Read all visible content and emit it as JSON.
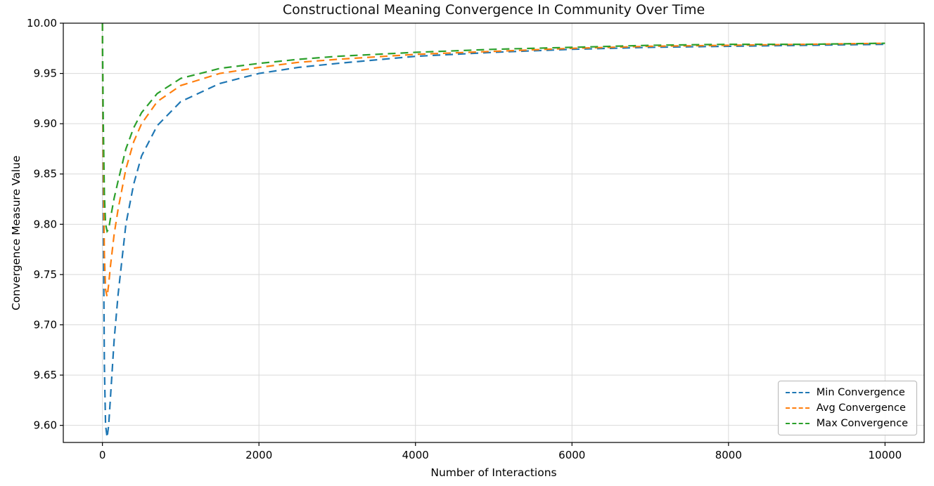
{
  "chart_data": {
    "type": "line",
    "title": "Constructional Meaning Convergence In Community Over Time",
    "xlabel": "Number of Interactions",
    "ylabel": "Convergence Measure Value",
    "xlim": [
      -500,
      10500
    ],
    "ylim": [
      9.583,
      10.0
    ],
    "xticks": [
      0,
      2000,
      4000,
      6000,
      8000,
      10000
    ],
    "yticks": [
      9.6,
      9.65,
      9.7,
      9.75,
      9.8,
      9.85,
      9.9,
      9.95,
      10.0
    ],
    "grid": true,
    "line_style": "dashed",
    "legend_position": "lower right",
    "x": [
      0,
      10,
      25,
      40,
      60,
      80,
      100,
      150,
      200,
      300,
      400,
      500,
      700,
      1000,
      1500,
      2000,
      2500,
      3000,
      4000,
      5000,
      6000,
      7000,
      8000,
      9000,
      10000
    ],
    "series": [
      {
        "name": "Min Convergence",
        "color": "#1f77b4",
        "values": [
          10.0,
          9.82,
          9.66,
          9.6,
          9.588,
          9.6,
          9.625,
          9.685,
          9.73,
          9.8,
          9.84,
          9.868,
          9.898,
          9.922,
          9.94,
          9.95,
          9.956,
          9.96,
          9.967,
          9.971,
          9.974,
          9.976,
          9.977,
          9.978,
          9.979
        ]
      },
      {
        "name": "Avg Convergence",
        "color": "#ff7f0e",
        "values": [
          10.0,
          9.87,
          9.77,
          9.735,
          9.728,
          9.74,
          9.757,
          9.79,
          9.815,
          9.855,
          9.882,
          9.9,
          9.922,
          9.938,
          9.95,
          9.956,
          9.961,
          9.964,
          9.969,
          9.972,
          9.975,
          9.977,
          9.978,
          9.979,
          9.98
        ]
      },
      {
        "name": "Max Convergence",
        "color": "#2ca02c",
        "values": [
          10.0,
          9.91,
          9.83,
          9.8,
          9.793,
          9.795,
          9.805,
          9.826,
          9.843,
          9.875,
          9.896,
          9.911,
          9.93,
          9.945,
          9.955,
          9.96,
          9.964,
          9.967,
          9.971,
          9.974,
          9.976,
          9.978,
          9.979,
          9.979,
          9.98
        ]
      }
    ]
  }
}
